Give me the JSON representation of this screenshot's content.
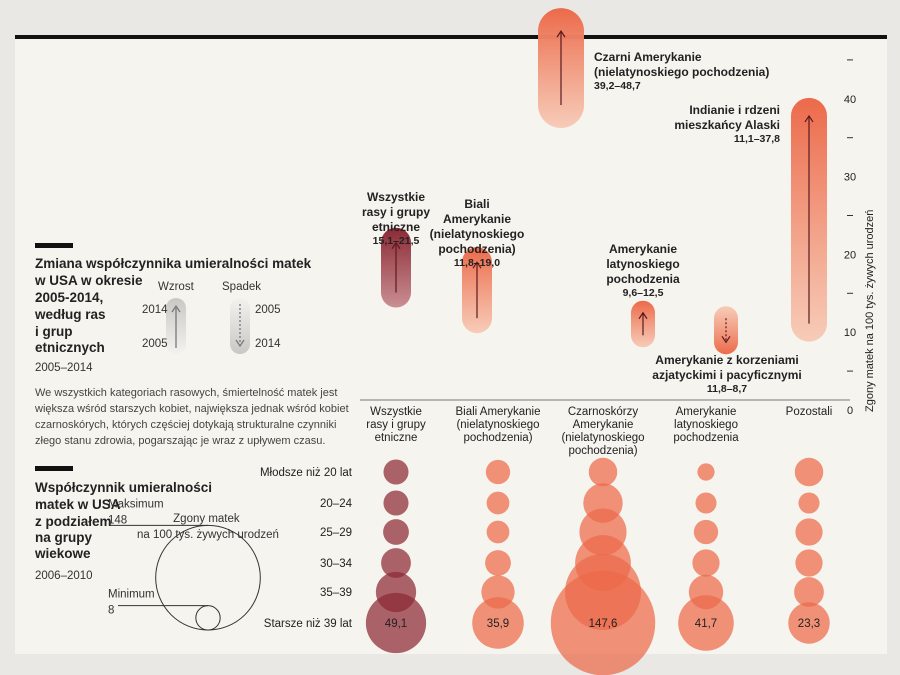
{
  "section1": {
    "title_lines": [
      "Zmiana współczynnika umieralności matek",
      "w USA w okresie",
      "2005-2014,",
      "według ras",
      "i grup",
      "etnicznych"
    ],
    "years": "2005–2014",
    "legend": {
      "increase": "Wzrost",
      "decrease": "Spadek",
      "year_a": "2014",
      "year_b": "2005"
    }
  },
  "note": [
    "We wszystkich kategoriach rasowych, śmiertelność matek jest",
    "większa wśród starszych kobiet, największa jednak wśród kobiet",
    "czarnoskórych, których częściej dotykają strukturalne czynniki",
    "złego stanu zdrowia, pogarszając je wraz z upływem czasu."
  ],
  "section2": {
    "title_lines": [
      "Współczynnik umieralności",
      "matek w USA",
      "z podziałem",
      "na grupy",
      "wiekowe"
    ],
    "years": "2006–2010",
    "size_legend": {
      "title_lines": [
        "Zgony matek",
        "na 100 tys. żywych urodzeń"
      ],
      "max_label": "Maksimum",
      "max_value": 148,
      "min_label": "Minimum",
      "min_value": 8
    }
  },
  "chart_data": [
    {
      "type": "range",
      "ylabel": "Zgony matek na 100 tys. żywych urodzeń",
      "ylim": [
        0,
        40
      ],
      "yticks": [
        0,
        10,
        20,
        30,
        40
      ],
      "series": [
        {
          "label_lines": [
            "Wszystkie",
            "rasy i grupy",
            "etniczne"
          ],
          "range_text": "15,1–21,5",
          "from": 15.1,
          "to": 21.5,
          "color": "#8c2a35",
          "style": "dark"
        },
        {
          "label_lines": [
            "Biali",
            "Amerykanie",
            "(nielatynoskiego",
            "pochodzenia)"
          ],
          "range_text": "11,8–19,0",
          "from": 11.8,
          "to": 19.0,
          "color": "#ec6a4a",
          "style": "orange"
        },
        {
          "label_lines": [
            "Czarni Amerykanie",
            "(nielatynoskiego pochodzenia)"
          ],
          "range_text": "39,2–48,7",
          "from": 39.2,
          "to": 48.7,
          "color": "#ec6a4a",
          "style": "orange"
        },
        {
          "label_lines": [
            "Amerykanie",
            "latynoskiego",
            "pochodzenia"
          ],
          "range_text": "9,6–12,5",
          "from": 9.6,
          "to": 12.5,
          "color": "#ec6a4a",
          "style": "orange"
        },
        {
          "label_lines": [
            "Amerykanie z korzeniami",
            "azjatyckimi i pacyficznymi"
          ],
          "range_text": "11,8–8,7",
          "from": 11.8,
          "to": 8.7,
          "color": "#ec6a4a",
          "style": "orange"
        },
        {
          "label_lines": [
            "Indianie i rdzeni",
            "mieszkańcy Alaski"
          ],
          "range_text": "11,1–37,8",
          "from": 11.1,
          "to": 37.8,
          "color": "#ec6a4a",
          "style": "orange"
        }
      ]
    },
    {
      "type": "bubble",
      "rows": [
        "Młodsze niż 20 lat",
        "20–24",
        "25–29",
        "30–34",
        "35–39",
        "Starsze niż 39 lat"
      ],
      "columns": [
        {
          "label_lines": [
            "Wszystkie",
            "rasy i grupy",
            "etniczne"
          ],
          "color": "#8c2a35",
          "values": [
            8.5,
            8.5,
            9,
            12,
            22,
            49.1
          ],
          "value_label": "49,1"
        },
        {
          "label_lines": [
            "Biali Amerykanie",
            "(nielatynoskiego",
            "pochodzenia)"
          ],
          "color": "#ec6a4a",
          "values": [
            8,
            7,
            7,
            9,
            15,
            35.9
          ],
          "value_label": "35,9"
        },
        {
          "label_lines": [
            "Czarnoskórzy",
            "Amerykanie",
            "(nielatynoskiego",
            "pochodzenia)"
          ],
          "color": "#ec6a4a",
          "values": [
            11,
            21,
            30,
            42,
            78,
            147.6
          ],
          "value_label": "147,6"
        },
        {
          "label_lines": [
            "Amerykanie",
            "latynoskiego",
            "pochodzenia"
          ],
          "color": "#ec6a4a",
          "values": [
            4,
            6,
            8,
            10,
            16,
            41.7
          ],
          "value_label": "41,7"
        },
        {
          "label_lines": [
            "Pozostali"
          ],
          "color": "#ec6a4a",
          "values": [
            11,
            6,
            10,
            10,
            12,
            23.3
          ],
          "value_label": "23,3"
        }
      ]
    }
  ]
}
